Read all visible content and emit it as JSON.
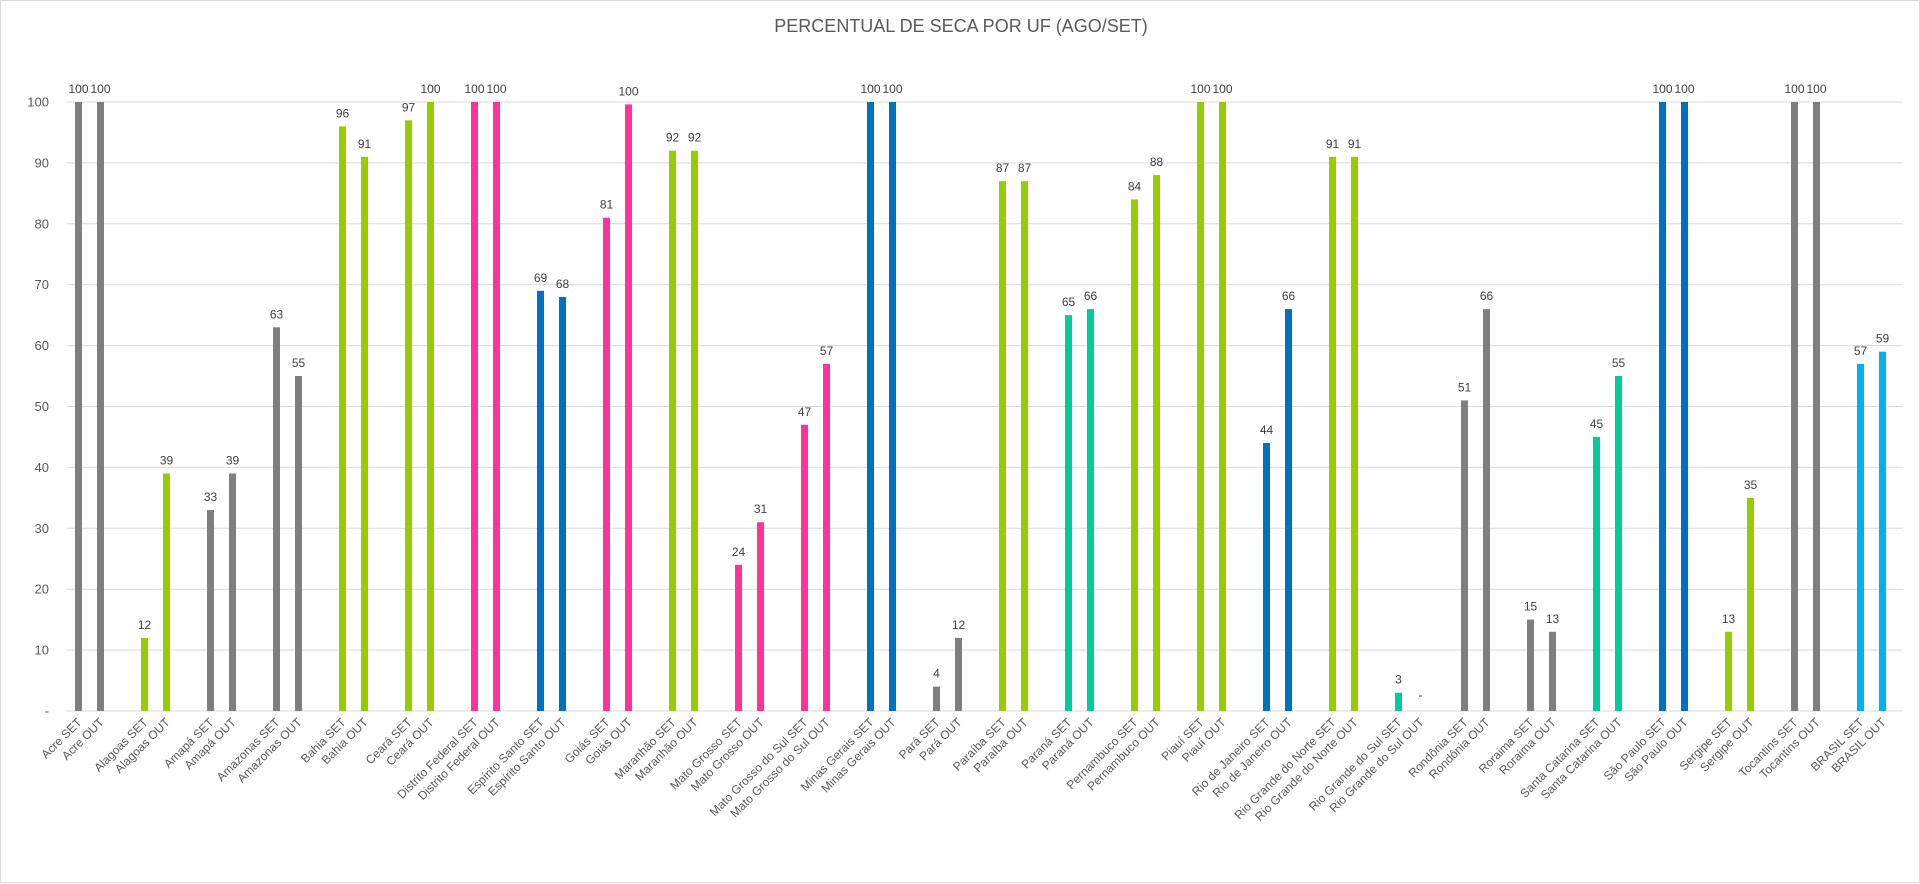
{
  "chart_data": {
    "type": "bar",
    "title": "PERCENTUAL DE SECA POR UF (AGO/SET)",
    "xlabel": "",
    "ylabel": "",
    "ylim": [
      0,
      100
    ],
    "yticks": [
      0,
      10,
      20,
      30,
      40,
      50,
      60,
      70,
      80,
      90,
      100
    ],
    "ytick_labels": [
      "-",
      "10",
      "20",
      "30",
      "40",
      "50",
      "60",
      "70",
      "80",
      "90",
      "100"
    ],
    "grid": true,
    "colors": {
      "gray": "#7f7f7f",
      "green": "#99cc00",
      "pink": "#ff3399",
      "blue": "#0070c0",
      "teal": "#00cc99",
      "cyan": "#00b0f0"
    },
    "bars": [
      {
        "label": "Acre SET",
        "value": 100,
        "display": "100",
        "color": "gray",
        "slot": 0
      },
      {
        "label": "Acre OUT",
        "value": 100,
        "display": "100",
        "color": "gray",
        "slot": 1
      },
      {
        "label": "Alagoas SET",
        "value": 12,
        "display": "12",
        "color": "green",
        "slot": 3
      },
      {
        "label": "Alagoas OUT",
        "value": 39,
        "display": "39",
        "color": "green",
        "slot": 4
      },
      {
        "label": "Amapá SET",
        "value": 33,
        "display": "33",
        "color": "gray",
        "slot": 6
      },
      {
        "label": "Amapá OUT",
        "value": 39,
        "display": "39",
        "color": "gray",
        "slot": 7
      },
      {
        "label": "Amazonas SET",
        "value": 63,
        "display": "63",
        "color": "gray",
        "slot": 9
      },
      {
        "label": "Amazonas OUT",
        "value": 55,
        "display": "55",
        "color": "gray",
        "slot": 10
      },
      {
        "label": "Bahia SET",
        "value": 96,
        "display": "96",
        "color": "green",
        "slot": 12
      },
      {
        "label": "Bahia OUT",
        "value": 91,
        "display": "91",
        "color": "green",
        "slot": 13
      },
      {
        "label": "Ceará SET",
        "value": 97,
        "display": "97",
        "color": "green",
        "slot": 15
      },
      {
        "label": "Ceará OUT",
        "value": 100,
        "display": "100",
        "color": "green",
        "slot": 16
      },
      {
        "label": "Distrito Federal SET",
        "value": 100,
        "display": "100",
        "color": "pink",
        "slot": 18
      },
      {
        "label": "Distrito Federal OUT",
        "value": 100,
        "display": "100",
        "color": "pink",
        "slot": 19
      },
      {
        "label": "Espírito Santo SET",
        "value": 69,
        "display": "69",
        "color": "blue",
        "slot": 21
      },
      {
        "label": "Espírito Santo OUT",
        "value": 68,
        "display": "68",
        "color": "blue",
        "slot": 22
      },
      {
        "label": "Goiás SET",
        "value": 81,
        "display": "81",
        "color": "pink",
        "slot": 24
      },
      {
        "label": "Goiás OUT",
        "value": 99.6,
        "display": "100",
        "color": "pink",
        "slot": 25
      },
      {
        "label": "Maranhão SET",
        "value": 92,
        "display": "92",
        "color": "green",
        "slot": 27
      },
      {
        "label": "Maranhão OUT",
        "value": 92,
        "display": "92",
        "color": "green",
        "slot": 28
      },
      {
        "label": "Mato Grosso SET",
        "value": 24,
        "display": "24",
        "color": "pink",
        "slot": 30
      },
      {
        "label": "Mato Grosso OUT",
        "value": 31,
        "display": "31",
        "color": "pink",
        "slot": 31
      },
      {
        "label": "Mato Grosso do Sul SET",
        "value": 47,
        "display": "47",
        "color": "pink",
        "slot": 33
      },
      {
        "label": "Mato Grosso do Sul OUT",
        "value": 57,
        "display": "57",
        "color": "pink",
        "slot": 34
      },
      {
        "label": "Minas Gerais SET",
        "value": 100,
        "display": "100",
        "color": "blue",
        "slot": 36
      },
      {
        "label": "Minas Gerais OUT",
        "value": 100,
        "display": "100",
        "color": "blue",
        "slot": 37
      },
      {
        "label": "Pará SET",
        "value": 4,
        "display": "4",
        "color": "gray",
        "slot": 39
      },
      {
        "label": "Pará OUT",
        "value": 12,
        "display": "12",
        "color": "gray",
        "slot": 40
      },
      {
        "label": "Paraíba SET",
        "value": 87,
        "display": "87",
        "color": "green",
        "slot": 42
      },
      {
        "label": "Paraíba OUT",
        "value": 87,
        "display": "87",
        "color": "green",
        "slot": 43
      },
      {
        "label": "Paraná SET",
        "value": 65,
        "display": "65",
        "color": "teal",
        "slot": 45
      },
      {
        "label": "Paraná OUT",
        "value": 66,
        "display": "66",
        "color": "teal",
        "slot": 46
      },
      {
        "label": "Pernambuco SET",
        "value": 84,
        "display": "84",
        "color": "green",
        "slot": 48
      },
      {
        "label": "Pernambuco OUT",
        "value": 88,
        "display": "88",
        "color": "green",
        "slot": 49
      },
      {
        "label": "Piauí SET",
        "value": 100,
        "display": "100",
        "color": "green",
        "slot": 51
      },
      {
        "label": "Piauí OUT",
        "value": 100,
        "display": "100",
        "color": "green",
        "slot": 52
      },
      {
        "label": "Rio de Janeiro SET",
        "value": 44,
        "display": "44",
        "color": "blue",
        "slot": 54
      },
      {
        "label": "Rio de Janeiro OUT",
        "value": 66,
        "display": "66",
        "color": "blue",
        "slot": 55
      },
      {
        "label": "Rio Grande do Norte SET",
        "value": 91,
        "display": "91",
        "color": "green",
        "slot": 57
      },
      {
        "label": "Rio Grande do Norte OUT",
        "value": 91,
        "display": "91",
        "color": "green",
        "slot": 58
      },
      {
        "label": "Rio Grande do Sul SET",
        "value": 3,
        "display": "3",
        "color": "teal",
        "slot": 60
      },
      {
        "label": "Rio Grande do Sul OUT",
        "value": 0,
        "display": "-",
        "color": "teal",
        "slot": 61
      },
      {
        "label": "Rondônia SET",
        "value": 51,
        "display": "51",
        "color": "gray",
        "slot": 63
      },
      {
        "label": "Rondônia OUT",
        "value": 66,
        "display": "66",
        "color": "gray",
        "slot": 64
      },
      {
        "label": "Roraima SET",
        "value": 15,
        "display": "15",
        "color": "gray",
        "slot": 66
      },
      {
        "label": "Roraima OUT",
        "value": 13,
        "display": "13",
        "color": "gray",
        "slot": 67
      },
      {
        "label": "Santa Catarina SET",
        "value": 45,
        "display": "45",
        "color": "teal",
        "slot": 69
      },
      {
        "label": "Santa Catarina OUT",
        "value": 55,
        "display": "55",
        "color": "teal",
        "slot": 70
      },
      {
        "label": "São Paulo SET",
        "value": 100,
        "display": "100",
        "color": "blue",
        "slot": 72
      },
      {
        "label": "São Paulo OUT",
        "value": 100,
        "display": "100",
        "color": "blue",
        "slot": 73
      },
      {
        "label": "Sergipe SET",
        "value": 13,
        "display": "13",
        "color": "green",
        "slot": 75
      },
      {
        "label": "Sergipe OUT",
        "value": 35,
        "display": "35",
        "color": "green",
        "slot": 76
      },
      {
        "label": "Tocantins SET",
        "value": 100,
        "display": "100",
        "color": "gray",
        "slot": 78
      },
      {
        "label": "Tocantins OUT",
        "value": 100,
        "display": "100",
        "color": "gray",
        "slot": 79
      },
      {
        "label": "BRASIL SET",
        "value": 57,
        "display": "57",
        "color": "cyan",
        "slot": 81
      },
      {
        "label": "BRASIL OUT",
        "value": 59,
        "display": "59",
        "color": "cyan",
        "slot": 82
      }
    ]
  }
}
